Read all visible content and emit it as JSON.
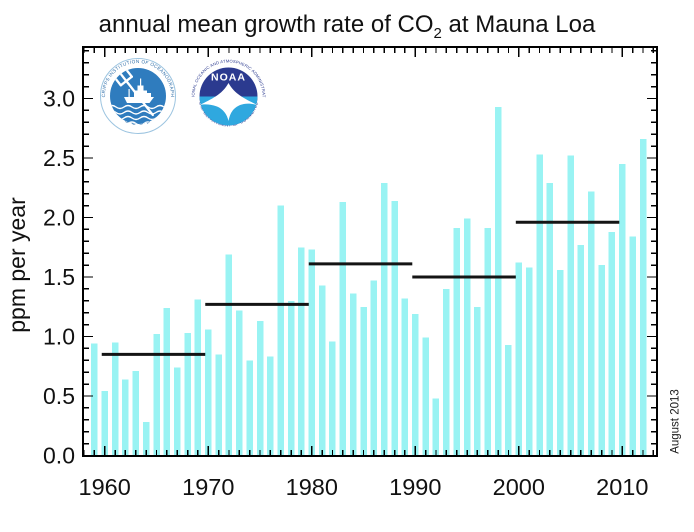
{
  "title": {
    "prefix": "annual mean growth rate of CO",
    "sub": "2",
    "suffix": " at Mauna Loa"
  },
  "y_axis_label": "ppm per year",
  "annotation": "August 2013",
  "logos": {
    "scripps": {
      "ring_top": "SCRIPPS INSTITUTION OF OCEANOGRAPHY",
      "ring_bottom": "U C S D"
    },
    "noaa": {
      "name": "NOAA",
      "ring_top": "NATIONAL OCEANIC AND ATMOSPHERIC ADMINISTRATION",
      "ring_bottom": "U.S. DEPARTMENT OF COMMERCE"
    }
  },
  "colors": {
    "bar": "#99F3F3",
    "axis": "#000000",
    "decadal_line": "#141414",
    "noaa_navy": "#2B3A8F",
    "noaa_light_blue": "#2FA8DF",
    "scripps_blue": "#2F7CBE",
    "scripps_ring_text": "#2E6DA8"
  },
  "chart_data": {
    "type": "bar",
    "title": "annual mean growth rate of CO2 at Mauna Loa",
    "xlabel": "",
    "ylabel": "ppm per year",
    "grid": false,
    "legend": null,
    "xlim": [
      1957.9,
      2013.35
    ],
    "ylim": [
      0,
      3.43
    ],
    "x_major_ticks": [
      1960,
      1970,
      1980,
      1990,
      2000,
      2010
    ],
    "y_major_ticks": [
      0.0,
      0.5,
      1.0,
      1.5,
      2.0,
      2.5,
      3.0
    ],
    "x_minor_step": 1,
    "y_minor_step": 0.1,
    "years": [
      1959,
      1960,
      1961,
      1962,
      1963,
      1964,
      1965,
      1966,
      1967,
      1968,
      1969,
      1970,
      1971,
      1972,
      1973,
      1974,
      1975,
      1976,
      1977,
      1978,
      1979,
      1980,
      1981,
      1982,
      1983,
      1984,
      1985,
      1986,
      1987,
      1988,
      1989,
      1990,
      1991,
      1992,
      1993,
      1994,
      1995,
      1996,
      1997,
      1998,
      1999,
      2000,
      2001,
      2002,
      2003,
      2004,
      2005,
      2006,
      2007,
      2008,
      2009,
      2010,
      2011,
      2012
    ],
    "values": [
      0.94,
      0.54,
      0.95,
      0.64,
      0.71,
      0.28,
      1.02,
      1.24,
      0.74,
      1.03,
      1.31,
      1.06,
      0.85,
      1.69,
      1.22,
      0.8,
      1.13,
      0.83,
      2.1,
      1.3,
      1.75,
      1.73,
      1.43,
      0.96,
      2.13,
      1.36,
      1.25,
      1.47,
      2.29,
      2.14,
      1.32,
      1.19,
      0.99,
      0.48,
      1.4,
      1.91,
      1.99,
      1.25,
      1.91,
      2.93,
      0.93,
      1.62,
      1.58,
      2.53,
      2.29,
      1.56,
      2.52,
      1.77,
      2.22,
      1.6,
      1.88,
      2.45,
      1.84,
      2.66
    ],
    "decadal_means": [
      {
        "decade_start": 1960,
        "decade_end": 1970,
        "value": 0.85
      },
      {
        "decade_start": 1970,
        "decade_end": 1980,
        "value": 1.27
      },
      {
        "decade_start": 1980,
        "decade_end": 1990,
        "value": 1.61
      },
      {
        "decade_start": 1990,
        "decade_end": 2000,
        "value": 1.5
      },
      {
        "decade_start": 2000,
        "decade_end": 2010,
        "value": 1.96
      }
    ]
  }
}
